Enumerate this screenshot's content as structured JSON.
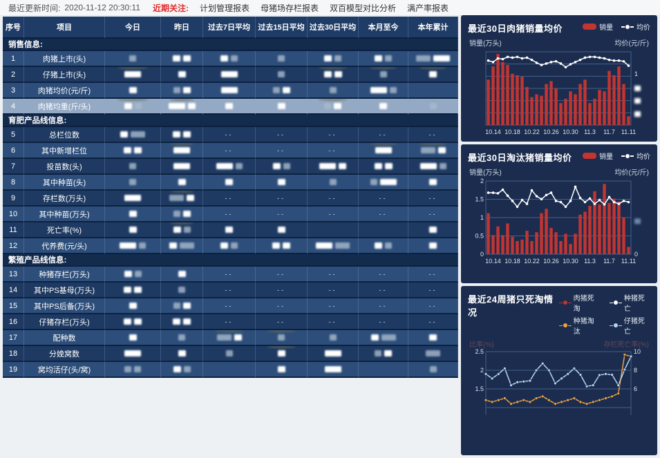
{
  "topbar": {
    "update_label": "最近更新时间:",
    "update_time": "2020-11-12 20:30:11",
    "focus_label": "近期关注:",
    "links": [
      "计划管理报表",
      "母猪场存栏报表",
      "双百模型对比分析",
      "满产率报表"
    ]
  },
  "table": {
    "headers": [
      "序号",
      "项目",
      "今日",
      "昨日",
      "过去7日平均",
      "过去15日平均",
      "过去30日平均",
      "本月至今",
      "本年累计"
    ],
    "redacted_cell_note": "w=white blurred block, g=gray blurred block, ww/gg=wide blocks, -=dash, s=smudge",
    "sections": [
      {
        "title": "销售信息:",
        "rows": [
          {
            "no": "1",
            "name": "肉猪上市(头)",
            "shade": "light",
            "cells": [
              "g",
              "w w",
              "w g",
              "g",
              "w g",
              "w g",
              "gg ww"
            ]
          },
          {
            "no": "2",
            "name": "仔猪上市(头)",
            "shade": "dark",
            "cells": [
              "ww s",
              "w",
              "ww",
              "g",
              "w w s",
              "g s",
              "w s"
            ]
          },
          {
            "no": "3",
            "name": "肉猪均价(元/斤)",
            "shade": "light",
            "cells": [
              "w",
              "g w",
              "ww",
              "g w",
              "g",
              "ww g",
              ""
            ]
          },
          {
            "no": "4",
            "name": "肉猪均重(斤/头)",
            "shade": "hl",
            "cells": [
              "w g s",
              "ww w s",
              "w",
              "w",
              "g w s",
              "w",
              "g"
            ]
          }
        ]
      },
      {
        "title": "育肥产品线信息:",
        "rows": [
          {
            "no": "5",
            "name": "总栏位数",
            "shade": "dark",
            "cells": [
              "w gg",
              "w w",
              "-",
              "-",
              "-",
              "-",
              "-"
            ]
          },
          {
            "no": "6",
            "name": "其中新增栏位",
            "shade": "light",
            "cells": [
              "w w",
              "ww s",
              "-",
              "-",
              "-",
              "ww s",
              "gg w s"
            ]
          },
          {
            "no": "7",
            "name": "投苗数(头)",
            "shade": "dark",
            "cells": [
              "g",
              "ww",
              "ww g",
              "w g",
              "ww w",
              "w w",
              "ww g"
            ]
          },
          {
            "no": "8",
            "name": "其中种苗(头)",
            "shade": "light",
            "cells": [
              "g",
              "w",
              "w",
              "w",
              "g",
              "g ww",
              "w"
            ]
          },
          {
            "no": "9",
            "name": "存栏数(万头)",
            "shade": "dark",
            "cells": [
              "ww",
              "gg w s",
              "-",
              "-",
              "-",
              "-",
              "-"
            ]
          },
          {
            "no": "10",
            "name": "其中种苗(万头)",
            "shade": "light",
            "cells": [
              "w",
              "g w",
              "-",
              "-",
              "-",
              "-",
              "-"
            ]
          },
          {
            "no": "11",
            "name": "死亡率(%)",
            "shade": "dark",
            "cells": [
              "w",
              "w g s",
              "w",
              "w",
              "",
              "",
              "w"
            ]
          },
          {
            "no": "12",
            "name": "代养费(元/头)",
            "shade": "light",
            "cells": [
              "ww g",
              "w gg",
              "w g",
              "w w",
              "ww gg",
              "w g",
              "w"
            ]
          }
        ]
      },
      {
        "title": "繁殖产品线信息:",
        "rows": [
          {
            "no": "13",
            "name": "种猪存栏(万头)",
            "shade": "light",
            "cells": [
              "w g",
              "w",
              "-",
              "-",
              "-",
              "-",
              "-"
            ]
          },
          {
            "no": "14",
            "name": "其中PS基母(万头)",
            "shade": "dark",
            "cells": [
              "w w",
              "g",
              "-",
              "-",
              "-",
              "-",
              "-"
            ]
          },
          {
            "no": "15",
            "name": "其中PS后备(万头)",
            "shade": "light",
            "cells": [
              "w",
              "g w",
              "-",
              "-",
              "-",
              "-",
              "-"
            ]
          },
          {
            "no": "16",
            "name": "仔猪存栏(万头)",
            "shade": "dark",
            "cells": [
              "w w",
              "w w",
              "-",
              "-",
              "-",
              "-",
              "-"
            ]
          },
          {
            "no": "17",
            "name": "配种数",
            "shade": "light",
            "cells": [
              "w",
              "g",
              "gg w s",
              "g s",
              "g",
              "w gg",
              "w"
            ]
          },
          {
            "no": "18",
            "name": "分娩窝数",
            "shade": "dark",
            "cells": [
              "ww",
              "w",
              "g",
              "w s",
              "ww",
              "g w",
              "gg"
            ]
          },
          {
            "no": "19",
            "name": "窝均活仔(头/窝)",
            "shade": "light",
            "cells": [
              "g g",
              "w g",
              "",
              "w",
              "ww",
              "",
              "g"
            ]
          }
        ]
      }
    ]
  },
  "chart_data": [
    {
      "type": "bar-line",
      "title": "最近30日肉猪销量均价",
      "legend": [
        {
          "label": "销量",
          "kind": "bar",
          "color": "#c23531"
        },
        {
          "label": "均价",
          "kind": "line",
          "color": "#ffffff"
        }
      ],
      "ylabel_left": "销量(万头)",
      "ylabel_right": "均价(元/斤)",
      "grid_divs": 6,
      "x_tick_labels": [
        "10.14",
        "10.18",
        "10.22",
        "10.26",
        "10.30",
        "11.3",
        "11.7",
        "11.11"
      ],
      "x_tick_indices": [
        1,
        5,
        9,
        13,
        17,
        21,
        25,
        29
      ],
      "bars": {
        "name": "销量",
        "color": "#c23531",
        "ymax": 1,
        "values": [
          0.62,
          0.8,
          0.97,
          0.86,
          0.82,
          0.7,
          0.68,
          0.66,
          0.52,
          0.38,
          0.42,
          0.4,
          0.56,
          0.6,
          0.5,
          0.3,
          0.36,
          0.46,
          0.42,
          0.56,
          0.62,
          0.3,
          0.36,
          0.48,
          0.46,
          0.74,
          0.68,
          0.8,
          0.56,
          0.12
        ]
      },
      "line": {
        "name": "均价",
        "color": "#ffffff",
        "ymax": 1,
        "values": [
          0.88,
          0.86,
          0.91,
          0.9,
          0.93,
          0.92,
          0.93,
          0.91,
          0.92,
          0.89,
          0.85,
          0.82,
          0.84,
          0.86,
          0.87,
          0.84,
          0.79,
          0.83,
          0.86,
          0.89,
          0.92,
          0.93,
          0.93,
          0.92,
          0.91,
          0.89,
          0.88,
          0.88,
          0.87,
          0.81
        ]
      },
      "left_ticks": [],
      "right_ticks": [
        {
          "t": "1",
          "f": 0.3
        },
        {
          "blur": true,
          "f": 0.5
        },
        {
          "blur": true,
          "f": 0.67
        },
        {
          "blur": true,
          "f": 0.85
        }
      ]
    },
    {
      "type": "bar-line",
      "title": "最近30日淘汰猪销量均价",
      "legend": [
        {
          "label": "销量",
          "kind": "bar",
          "color": "#c23531"
        },
        {
          "label": "均价",
          "kind": "line",
          "color": "#ffffff"
        }
      ],
      "ylabel_left": "销量(万头)",
      "ylabel_right": "均价(元/斤)",
      "grid_divs": 4,
      "x_tick_labels": [
        "10.14",
        "10.18",
        "10.22",
        "10.26",
        "10.30",
        "11.3",
        "11.7",
        "11.11"
      ],
      "x_tick_indices": [
        1,
        5,
        9,
        13,
        17,
        21,
        25,
        29
      ],
      "bars": {
        "name": "销量",
        "color": "#c23531",
        "ymax": 2,
        "values": [
          1.12,
          0.52,
          0.76,
          0.52,
          0.84,
          0.48,
          0.36,
          0.4,
          0.64,
          0.36,
          0.6,
          1.12,
          1.24,
          0.72,
          0.6,
          0.36,
          0.56,
          0.28,
          0.56,
          1.08,
          1.16,
          1.32,
          1.72,
          1.36,
          1.92,
          1.4,
          1.52,
          1.44,
          1.0,
          0.2
        ]
      },
      "line": {
        "name": "均价",
        "color": "#ffffff",
        "ymax": 2.5,
        "values": [
          2.1,
          2.1,
          2.08,
          2.2,
          2.0,
          1.82,
          1.62,
          1.85,
          1.72,
          2.18,
          1.98,
          1.88,
          2.02,
          2.1,
          1.82,
          1.78,
          1.62,
          1.82,
          2.3,
          1.92,
          1.78,
          1.9,
          1.72,
          1.85,
          1.7,
          1.95,
          1.78,
          1.72,
          1.82,
          1.78
        ]
      },
      "left_ticks": [
        {
          "t": "2",
          "f": 0
        },
        {
          "t": "1.5",
          "f": 0.25
        },
        {
          "t": "1",
          "f": 0.5
        },
        {
          "t": "0.5",
          "f": 0.75
        },
        {
          "t": "0",
          "f": 1
        }
      ],
      "right_ticks": [
        {
          "t": "0",
          "f": 1
        },
        {
          "blur": true,
          "f": 0.55,
          "color": "#6f89ab"
        }
      ]
    },
    {
      "type": "line",
      "title": "最近24周猪只死淘情况",
      "legend": [
        {
          "label": "肉猪死淘",
          "kind": "line",
          "color": "#c23531"
        },
        {
          "label": "种猪死亡",
          "kind": "line",
          "color": "#ffffff"
        },
        {
          "label": "种猪淘汰",
          "kind": "line",
          "color": "#f0a33f"
        },
        {
          "label": "仔猪死亡",
          "kind": "line",
          "color": "#b7d7f0"
        }
      ],
      "ylabel_left": "比率(%)",
      "ylabel_right": "存栏死亡率(%)",
      "labels_dim": true,
      "ylim": [
        0.8,
        2.5
      ],
      "left_ticks": [
        "2.5",
        "2",
        "1.5"
      ],
      "right_ticks": [
        "10",
        "8",
        "6"
      ],
      "series": [
        {
          "name": "种猪淘汰",
          "color": "#f0a33f",
          "values": [
            1.2,
            1.15,
            1.2,
            1.25,
            1.1,
            1.15,
            1.2,
            1.15,
            1.25,
            1.3,
            1.2,
            1.1,
            1.15,
            1.2,
            1.25,
            1.15,
            1.1,
            1.15,
            1.2,
            1.25,
            1.3,
            1.38,
            2.42,
            2.37
          ]
        },
        {
          "name": "仔猪死亡",
          "color": "#b7d7f0",
          "values": [
            1.9,
            1.78,
            1.9,
            2.05,
            1.6,
            1.68,
            1.7,
            1.72,
            2.0,
            2.18,
            2.0,
            1.65,
            1.78,
            1.9,
            2.05,
            1.88,
            1.57,
            1.6,
            1.87,
            1.9,
            1.88,
            1.6,
            2.02,
            2.37
          ]
        }
      ]
    }
  ],
  "colors": {
    "bar_red": "#c23531",
    "accent_red": "#e02b2b",
    "card_bg": "#1b2c4e",
    "row_light": "#2d4e7a",
    "row_dark": "#1e3a62",
    "row_highlight": "#93a9c4",
    "header_bg": "#1f3c66",
    "section_bg": "#132b4d",
    "grid_line": "#45608a"
  }
}
